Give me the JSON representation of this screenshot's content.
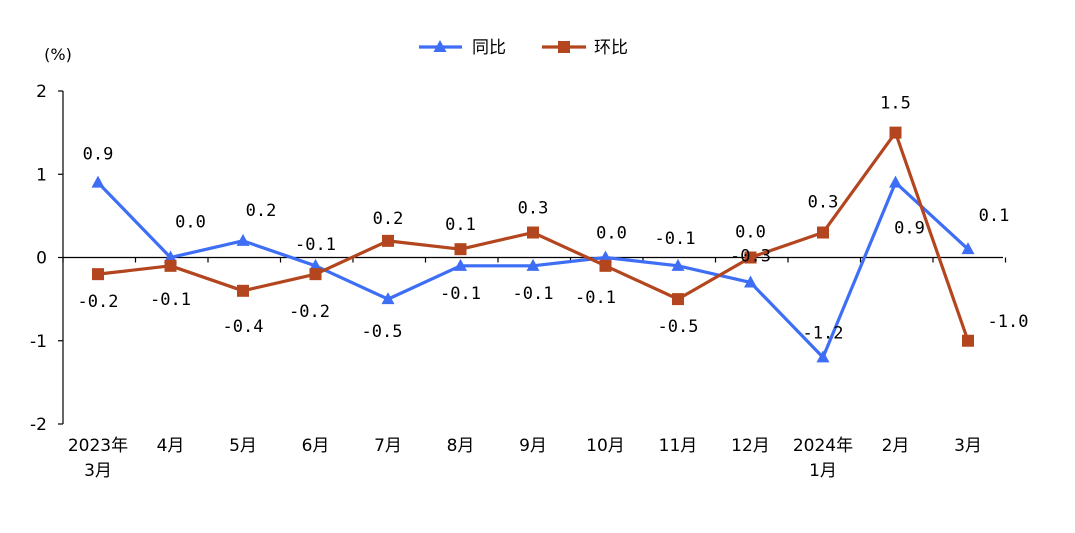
{
  "chart_data": {
    "type": "line",
    "unit_label": "(%)",
    "categories": [
      [
        "2023年",
        "3月"
      ],
      [
        "4月"
      ],
      [
        "5月"
      ],
      [
        "6月"
      ],
      [
        "7月"
      ],
      [
        "8月"
      ],
      [
        "9月"
      ],
      [
        "10月"
      ],
      [
        "11月"
      ],
      [
        "12月"
      ],
      [
        "2024年",
        "1月"
      ],
      [
        "2月"
      ],
      [
        "3月"
      ]
    ],
    "ylim": [
      -2,
      2
    ],
    "yticks": [
      2,
      1,
      0,
      -1,
      -2
    ],
    "grid": false,
    "legend_position": "top-center",
    "series": [
      {
        "name": "同比",
        "color": "#3d6ef5",
        "marker": "triangle",
        "values": [
          0.9,
          0.0,
          0.2,
          -0.1,
          -0.5,
          -0.1,
          -0.1,
          0.0,
          -0.1,
          -0.3,
          -1.2,
          0.9,
          0.1
        ],
        "labels": [
          "0.9",
          "0.0",
          "0.2",
          "-0.1",
          "-0.5",
          "-0.1",
          "-0.1",
          "0.0",
          "-0.1",
          "-0.3",
          "-1.2",
          "0.9",
          "0.1"
        ]
      },
      {
        "name": "环比",
        "color": "#b3461e",
        "marker": "square",
        "values": [
          -0.2,
          -0.1,
          -0.4,
          -0.2,
          0.2,
          0.1,
          0.3,
          -0.1,
          -0.5,
          0.0,
          0.3,
          1.5,
          -1.0
        ],
        "labels": [
          "-0.2",
          "-0.1",
          "-0.4",
          "-0.2",
          "0.2",
          "0.1",
          "0.3",
          "-0.1",
          "-0.5",
          "0.0",
          "0.3",
          "1.5",
          "-1.0"
        ]
      }
    ]
  }
}
